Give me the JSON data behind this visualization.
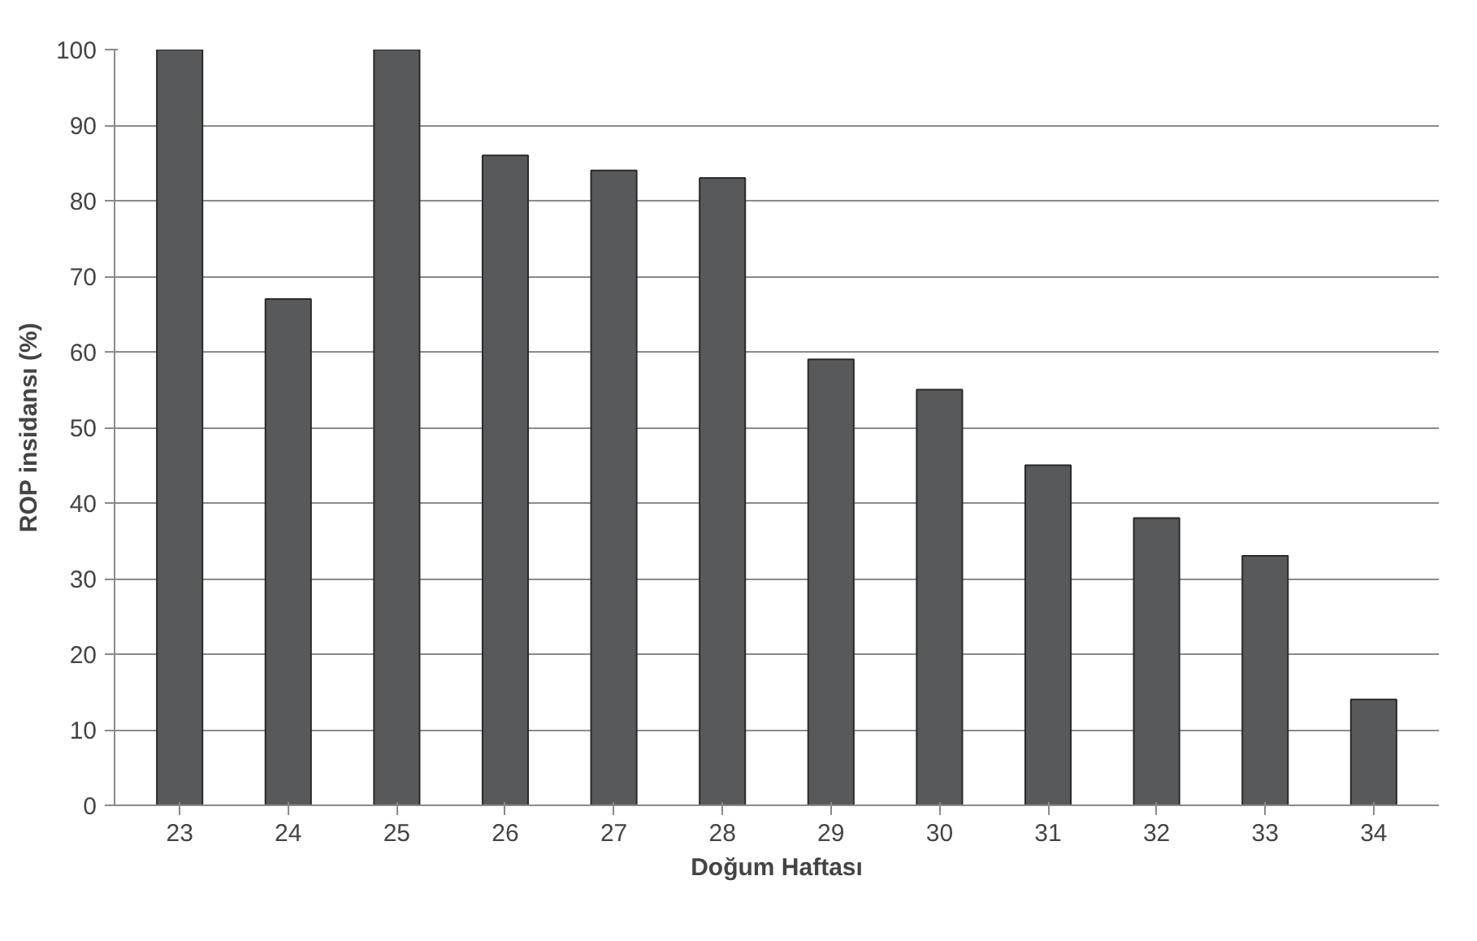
{
  "chart_data": {
    "type": "bar",
    "xlabel": "Doğum Haftası",
    "ylabel": "ROP insidansı (%)",
    "categories": [
      "23",
      "24",
      "25",
      "26",
      "27",
      "28",
      "29",
      "30",
      "31",
      "32",
      "33",
      "34"
    ],
    "values": [
      100,
      67,
      100,
      86,
      84,
      83,
      59,
      55,
      45,
      38,
      33,
      14
    ],
    "color": "#58595b",
    "ylim": [
      0,
      100
    ],
    "yticks": [
      0,
      10,
      20,
      30,
      40,
      50,
      60,
      70,
      80,
      90,
      100
    ],
    "grid": "y"
  }
}
